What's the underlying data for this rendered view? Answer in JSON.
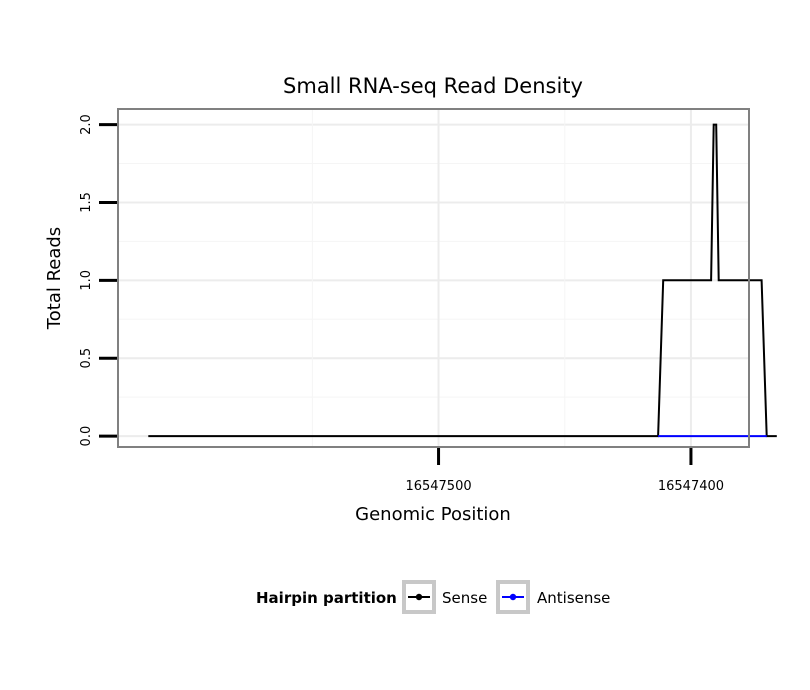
{
  "chart_data": {
    "type": "line",
    "title": "Small RNA-seq Read Density",
    "xlabel": "Genomic Position",
    "ylabel": "Total Reads",
    "x_reversed": true,
    "xlim": [
      16547627,
      16547377
    ],
    "ylim": [
      -0.07,
      2.1
    ],
    "x_ticks": [
      16547500,
      16547400
    ],
    "x_tick_labels": [
      "16547500",
      "16547400"
    ],
    "y_ticks": [
      0,
      0.5,
      1,
      1.5,
      2
    ],
    "y_tick_labels": [
      "0.0",
      "0.5",
      "1.0",
      "1.5",
      "2.0"
    ],
    "grid": true,
    "series": [
      {
        "name": "Sense",
        "color": "#000000",
        "x": [
          16547615,
          16547413,
          16547411,
          16547392,
          16547391,
          16547390,
          16547389,
          16547372,
          16547370,
          16547366
        ],
        "values": [
          0,
          0,
          1,
          1,
          2,
          2,
          1,
          1,
          0,
          0
        ]
      },
      {
        "name": "Antisense",
        "color": "#0000ff",
        "x": [
          16547413,
          16547370
        ],
        "values": [
          0,
          0
        ]
      }
    ],
    "legend": {
      "title": "Hairpin partition",
      "position": "bottom",
      "entries": [
        "Sense",
        "Antisense"
      ]
    }
  }
}
